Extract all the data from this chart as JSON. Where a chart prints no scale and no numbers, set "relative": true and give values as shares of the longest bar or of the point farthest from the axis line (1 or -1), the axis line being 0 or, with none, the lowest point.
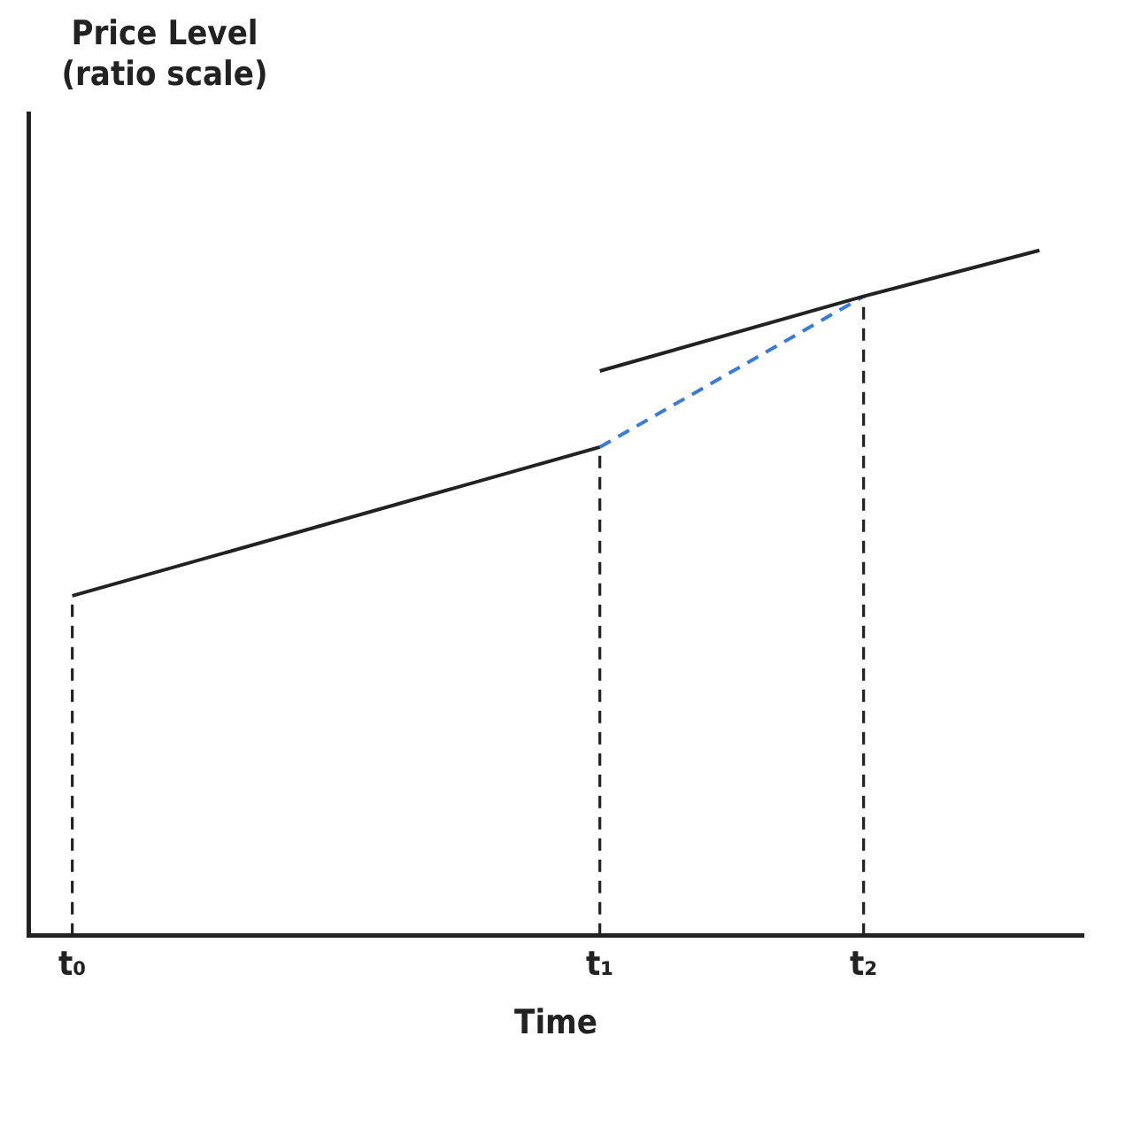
{
  "chart_data": {
    "type": "line",
    "relative": true,
    "ylabel": "Price Level (ratio scale)",
    "xlabel": "Time",
    "categories": [
      "t₀",
      null,
      null,
      null,
      null,
      null,
      "t₁",
      null,
      null,
      "t₂",
      null,
      null
    ],
    "series": [
      {
        "color": "#222222",
        "values": [
          0.496,
          null,
          null,
          null,
          null,
          null,
          0.713,
          null,
          null,
          null,
          null,
          null
        ]
      },
      {
        "color": "#222222",
        "values": [
          null,
          null,
          null,
          null,
          null,
          null,
          0.824,
          null,
          null,
          0.933,
          null,
          1
        ]
      },
      {
        "color": "#3a7bd5",
        "line_style": "dashed",
        "values": [
          null,
          null,
          null,
          null,
          null,
          null,
          0.713,
          null,
          null,
          0.933,
          null,
          null
        ]
      }
    ],
    "ref_lines": [
      {
        "axis": "x",
        "value": "t₀",
        "color": "#222222",
        "line_style": "dashed"
      },
      {
        "axis": "x",
        "value": "t₁",
        "color": "#222222",
        "line_style": "dashed"
      },
      {
        "axis": "x",
        "value": "t₂",
        "color": "#222222",
        "line_style": "dashed"
      }
    ],
    "tick_labels": "x",
    "grid": false,
    "legend": false,
    "marker": "none"
  }
}
